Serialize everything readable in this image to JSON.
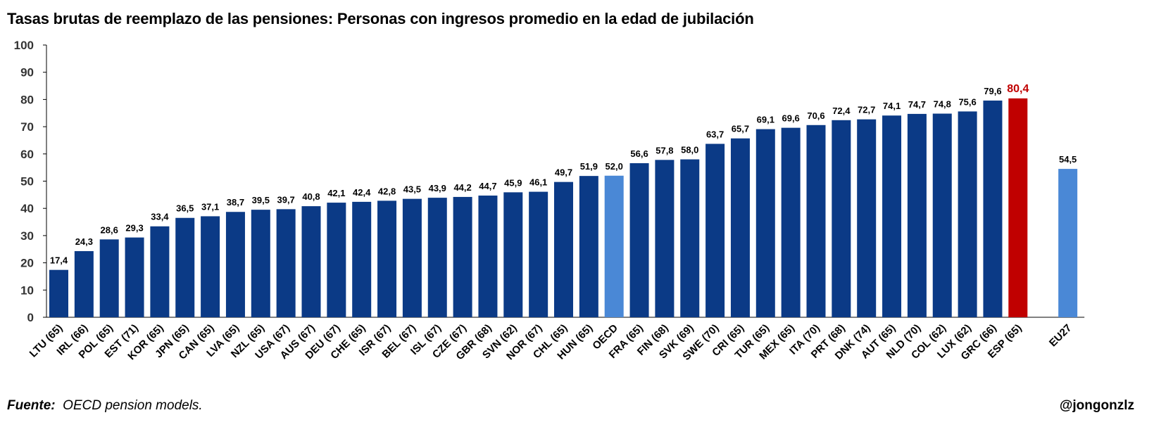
{
  "chart_data": {
    "type": "bar",
    "title": "Tasas brutas de reemplazo de las pensiones: Personas con ingresos promedio en la edad de jubilación",
    "xlabel": "",
    "ylabel": "",
    "ylim": [
      0,
      100
    ],
    "yticks": [
      "0",
      "10",
      "20",
      "30",
      "40",
      "50",
      "60",
      "70",
      "80",
      "90",
      "100"
    ],
    "grid": false,
    "categories": [
      "LTU (65)",
      "IRL (66)",
      "POL (65)",
      "EST (71)",
      "KOR (65)",
      "JPN (65)",
      "CAN (65)",
      "LVA (65)",
      "NZL (65)",
      "USA (67)",
      "AUS (67)",
      "DEU (67)",
      "CHE (65)",
      "ISR (67)",
      "BEL (67)",
      "ISL (67)",
      "CZE (67)",
      "GBR (68)",
      "SVN (62)",
      "NOR (67)",
      "CHL (65)",
      "HUN (65)",
      "OECD",
      "FRA (65)",
      "FIN (68)",
      "SVK (69)",
      "SWE (70)",
      "CRI (65)",
      "TUR (65)",
      "MEX (65)",
      "ITA (70)",
      "PRT (68)",
      "DNK (74)",
      "AUT (65)",
      "NLD (70)",
      "COL (62)",
      "LUX (62)",
      "GRC (66)",
      "ESP (65)",
      "EU27"
    ],
    "values": [
      17.4,
      24.3,
      28.6,
      29.3,
      33.4,
      36.5,
      37.1,
      38.7,
      39.5,
      39.7,
      40.8,
      42.1,
      42.4,
      42.8,
      43.5,
      43.9,
      44.2,
      44.7,
      45.9,
      46.1,
      49.7,
      51.9,
      52.0,
      56.6,
      57.8,
      58.0,
      63.7,
      65.7,
      69.1,
      69.6,
      70.6,
      72.4,
      72.7,
      74.1,
      74.7,
      74.8,
      75.6,
      79.6,
      80.4,
      54.5
    ],
    "labels": [
      "17,4",
      "24,3",
      "28,6",
      "29,3",
      "33,4",
      "36,5",
      "37,1",
      "38,7",
      "39,5",
      "39,7",
      "40,8",
      "42,1",
      "42,4",
      "42,8",
      "43,5",
      "43,9",
      "44,2",
      "44,7",
      "45,9",
      "46,1",
      "49,7",
      "51,9",
      "52,0",
      "56,6",
      "57,8",
      "58,0",
      "63,7",
      "65,7",
      "69,1",
      "69,6",
      "70,6",
      "72,4",
      "72,7",
      "74,1",
      "74,7",
      "74,8",
      "75,6",
      "79,6",
      "80,4",
      "54,5"
    ],
    "bar_kinds": [
      "country",
      "country",
      "country",
      "country",
      "country",
      "country",
      "country",
      "country",
      "country",
      "country",
      "country",
      "country",
      "country",
      "country",
      "country",
      "country",
      "country",
      "country",
      "country",
      "country",
      "country",
      "country",
      "average",
      "country",
      "country",
      "country",
      "country",
      "country",
      "country",
      "country",
      "country",
      "country",
      "country",
      "country",
      "country",
      "country",
      "country",
      "country",
      "highlight",
      "average"
    ],
    "colors": {
      "country": "#0B3A86",
      "average": "#4A88D6",
      "highlight": "#C00000",
      "highlight_label": "#C00000"
    }
  },
  "footer": {
    "source_label": "Fuente:",
    "source_text": "OECD pension models.",
    "handle": "@jongonzlz"
  }
}
